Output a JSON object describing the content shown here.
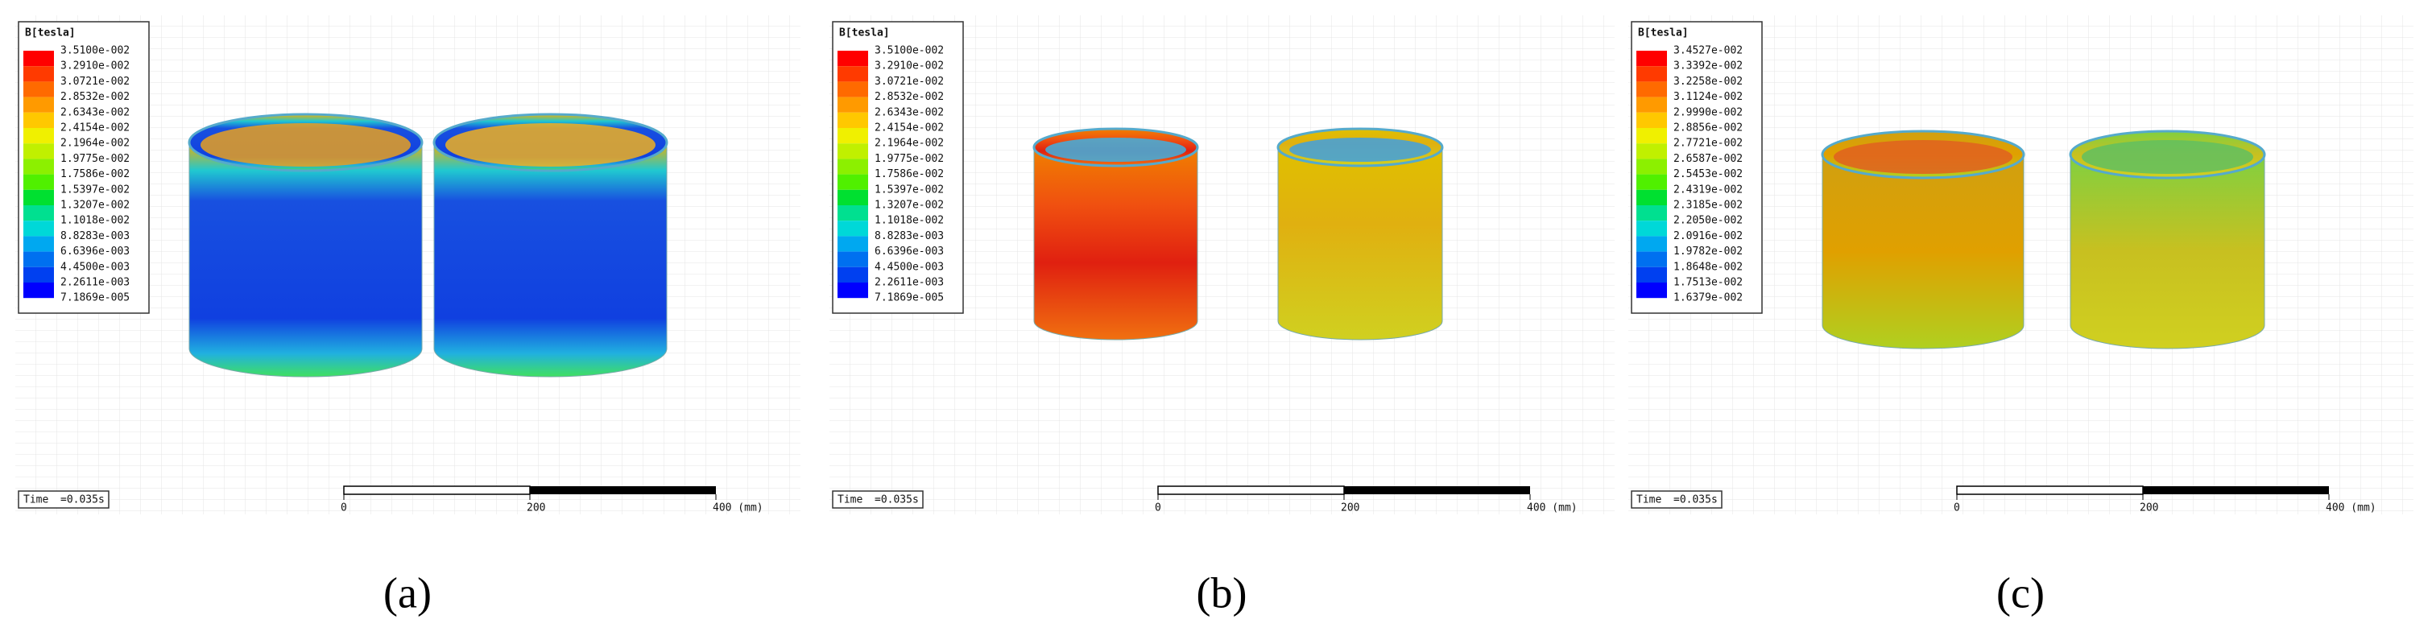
{
  "panels": [
    {
      "caption": "(a)",
      "legend": {
        "title": "B[tesla]",
        "labels": [
          "3.5100e-002",
          "3.2910e-002",
          "3.0721e-002",
          "2.8532e-002",
          "2.6343e-002",
          "2.4154e-002",
          "2.1964e-002",
          "1.9775e-002",
          "1.7586e-002",
          "1.5397e-002",
          "1.3207e-002",
          "1.1018e-002",
          "8.8283e-003",
          "6.6396e-003",
          "4.4500e-003",
          "2.2611e-003",
          "7.1869e-005"
        ]
      },
      "time_label": "Time",
      "time_value": "=0.035s",
      "scale_labels": [
        "0",
        "200",
        "400 (mm)"
      ]
    },
    {
      "caption": "(b)",
      "legend": {
        "title": "B[tesla]",
        "labels": [
          "3.5100e-002",
          "3.2910e-002",
          "3.0721e-002",
          "2.8532e-002",
          "2.6343e-002",
          "2.4154e-002",
          "2.1964e-002",
          "1.9775e-002",
          "1.7586e-002",
          "1.5397e-002",
          "1.3207e-002",
          "1.1018e-002",
          "8.8283e-003",
          "6.6396e-003",
          "4.4500e-003",
          "2.2611e-003",
          "7.1869e-005"
        ]
      },
      "time_label": "Time",
      "time_value": "=0.035s",
      "scale_labels": [
        "0",
        "200",
        "400 (mm)"
      ]
    },
    {
      "caption": "(c)",
      "legend": {
        "title": "B[tesla]",
        "labels": [
          "3.4527e-002",
          "3.3392e-002",
          "3.2258e-002",
          "3.1124e-002",
          "2.9990e-002",
          "2.8856e-002",
          "2.7721e-002",
          "2.6587e-002",
          "2.5453e-002",
          "2.4319e-002",
          "2.3185e-002",
          "2.2050e-002",
          "2.0916e-002",
          "1.9782e-002",
          "1.8648e-002",
          "1.7513e-002",
          "1.6379e-002"
        ]
      },
      "time_label": "Time",
      "time_value": "=0.035s",
      "scale_labels": [
        "0",
        "200",
        "400 (mm)"
      ]
    }
  ]
}
